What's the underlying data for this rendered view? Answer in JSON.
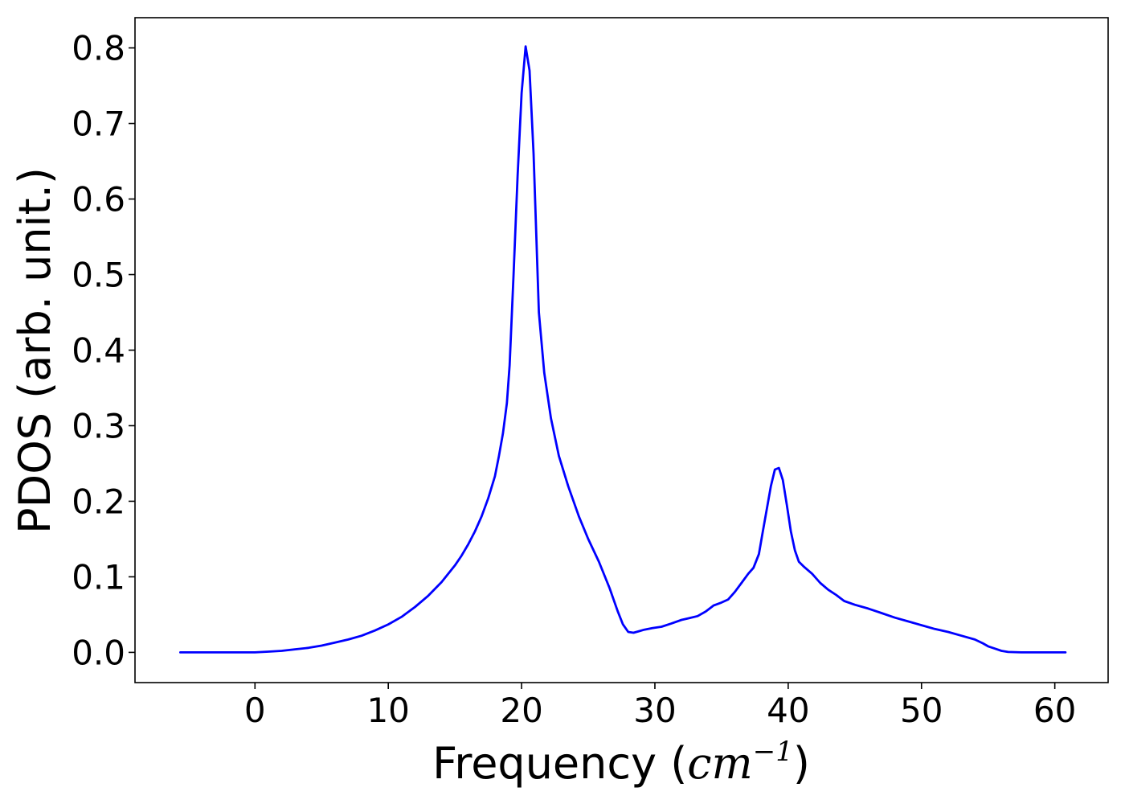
{
  "chart_data": {
    "type": "line",
    "title": "",
    "xlabel_prefix": "Frequency (",
    "xlabel_unit": "cm",
    "xlabel_exponent": "−1",
    "xlabel_suffix": ")",
    "ylabel": "PDOS (arb. unit.)",
    "xlim": [
      -9,
      64
    ],
    "ylim": [
      -0.04,
      0.84
    ],
    "xticks": [
      0,
      10,
      20,
      30,
      40,
      50,
      60
    ],
    "xtick_labels": [
      "0",
      "10",
      "20",
      "30",
      "40",
      "50",
      "60"
    ],
    "yticks": [
      0.0,
      0.1,
      0.2,
      0.3,
      0.4,
      0.5,
      0.6,
      0.7,
      0.8
    ],
    "ytick_labels": [
      "0.0",
      "0.1",
      "0.2",
      "0.3",
      "0.4",
      "0.5",
      "0.6",
      "0.7",
      "0.8"
    ],
    "grid": false,
    "series": [
      {
        "color": "#0000ff",
        "x": [
          -5.6,
          -2,
          0,
          1,
          2,
          3,
          4,
          5,
          6,
          7,
          8,
          9,
          10,
          11,
          12,
          13,
          14,
          15,
          15.5,
          16,
          16.5,
          17,
          17.5,
          18,
          18.3,
          18.6,
          18.9,
          19.1,
          19.4,
          19.7,
          20,
          20.3,
          20.6,
          20.9,
          21.3,
          21.7,
          22.2,
          22.8,
          23.5,
          24.3,
          25,
          25.8,
          26.6,
          27.2,
          27.6,
          28,
          28.4,
          28.8,
          29.2,
          29.8,
          30.5,
          31.2,
          32,
          32.5,
          33.2,
          33.8,
          34.4,
          35,
          35.5,
          36,
          36.5,
          37,
          37.4,
          37.8,
          38.1,
          38.4,
          38.7,
          39,
          39.3,
          39.6,
          39.9,
          40.2,
          40.5,
          40.8,
          41.2,
          41.8,
          42.4,
          43,
          43.6,
          44.2,
          45,
          46,
          47,
          48,
          49,
          50,
          51,
          52,
          53,
          54,
          54.6,
          55,
          55.5,
          56,
          56.5,
          57.5,
          60,
          60.8
        ],
        "y": [
          0,
          0,
          0,
          0.001,
          0.002,
          0.004,
          0.006,
          0.009,
          0.013,
          0.017,
          0.022,
          0.029,
          0.037,
          0.047,
          0.06,
          0.075,
          0.093,
          0.115,
          0.128,
          0.143,
          0.16,
          0.18,
          0.204,
          0.233,
          0.26,
          0.29,
          0.33,
          0.38,
          0.5,
          0.63,
          0.74,
          0.802,
          0.77,
          0.66,
          0.45,
          0.37,
          0.31,
          0.26,
          0.22,
          0.18,
          0.15,
          0.12,
          0.085,
          0.055,
          0.037,
          0.027,
          0.026,
          0.028,
          0.03,
          0.032,
          0.034,
          0.038,
          0.043,
          0.045,
          0.048,
          0.054,
          0.062,
          0.066,
          0.07,
          0.08,
          0.092,
          0.104,
          0.112,
          0.13,
          0.16,
          0.19,
          0.22,
          0.242,
          0.244,
          0.228,
          0.195,
          0.16,
          0.135,
          0.12,
          0.113,
          0.104,
          0.092,
          0.083,
          0.076,
          0.068,
          0.063,
          0.058,
          0.052,
          0.046,
          0.041,
          0.036,
          0.031,
          0.027,
          0.022,
          0.017,
          0.012,
          0.008,
          0.005,
          0.002,
          0.0005,
          0,
          0,
          0
        ]
      }
    ]
  }
}
